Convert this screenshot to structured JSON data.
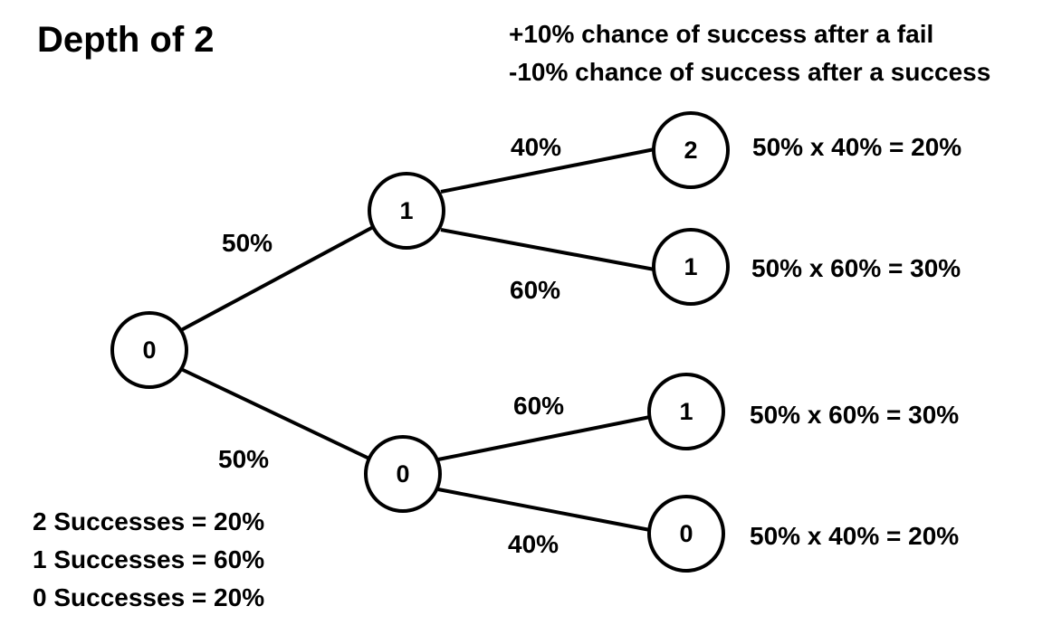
{
  "title": "Depth of 2",
  "rules": [
    "+10% chance of success after a fail",
    "-10% chance of success after a success"
  ],
  "tree": {
    "nodes": {
      "root": "0",
      "l1_top": "1",
      "l1_bottom": "0",
      "l2_1": "2",
      "l2_2": "1",
      "l2_3": "1",
      "l2_4": "0"
    },
    "edges": {
      "root_to_l1_top": "50%",
      "root_to_l1_bottom": "50%",
      "l1_top_to_l2_1": "40%",
      "l1_top_to_l2_2": "60%",
      "l1_bottom_to_l2_3": "60%",
      "l1_bottom_to_l2_4": "40%"
    }
  },
  "outcomes": [
    "50% x 40% = 20%",
    "50% x 60% = 30%",
    "50% x 60% = 30%",
    "50% x 40% = 20%"
  ],
  "summary": [
    "2 Successes = 20%",
    "1 Successes = 60%",
    "0 Successes = 20%"
  ]
}
